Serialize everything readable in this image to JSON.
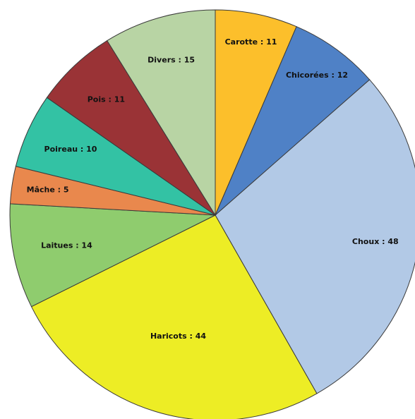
{
  "chart_data": {
    "type": "pie",
    "legend": "none",
    "start_angle_deg": 0,
    "direction": "clockwise",
    "slices": [
      {
        "label": "Carotte : 11",
        "name": "Carotte",
        "value": 11,
        "color": "#fcbf2b"
      },
      {
        "label": "Chicorées : 12",
        "name": "Chicorées",
        "value": 12,
        "color": "#4f81c6"
      },
      {
        "label": "Choux : 48",
        "name": "Choux",
        "value": 48,
        "color": "#b2c9e6"
      },
      {
        "label": "Haricots : 44",
        "name": "Haricots",
        "value": 44,
        "color": "#eded25"
      },
      {
        "label": "Laitues : 14",
        "name": "Laitues",
        "value": 14,
        "color": "#8fcc6e"
      },
      {
        "label": "Mâche : 5",
        "name": "Mâche",
        "value": 5,
        "color": "#e9884d"
      },
      {
        "label": "Poireau : 10",
        "name": "Poireau",
        "value": 10,
        "color": "#33c2a4"
      },
      {
        "label": "Pois : 11",
        "name": "Pois",
        "value": 11,
        "color": "#9a3336"
      },
      {
        "label": "Divers : 15",
        "name": "Divers",
        "value": 15,
        "color": "#b8d4a4"
      }
    ]
  }
}
